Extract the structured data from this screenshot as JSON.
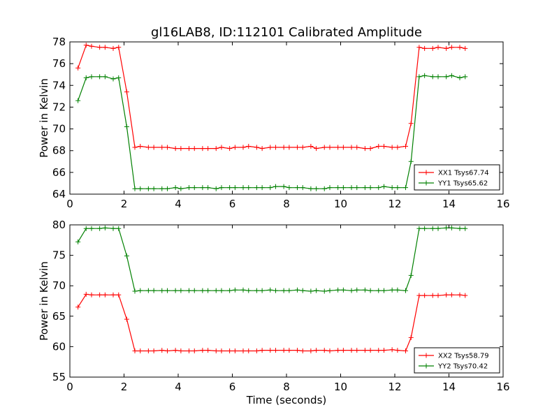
{
  "chart_data": [
    {
      "type": "line",
      "title": "gl16LAB8, ID:112101 Calibrated Amplitude",
      "xlabel": "",
      "ylabel": "Power in Kelvin",
      "xlim": [
        0,
        16
      ],
      "ylim": [
        64,
        78
      ],
      "xticks": [
        0,
        2,
        4,
        6,
        8,
        10,
        12,
        14,
        16
      ],
      "yticks": [
        64,
        66,
        68,
        70,
        72,
        74,
        76,
        78
      ],
      "legend_position": "lower-right",
      "x": [
        0.3,
        0.6,
        0.8,
        1.1,
        1.3,
        1.6,
        1.8,
        2.1,
        2.4,
        2.6,
        2.9,
        3.1,
        3.4,
        3.6,
        3.9,
        4.1,
        4.4,
        4.6,
        4.9,
        5.1,
        5.4,
        5.6,
        5.9,
        6.1,
        6.4,
        6.6,
        6.9,
        7.1,
        7.4,
        7.6,
        7.9,
        8.1,
        8.4,
        8.6,
        8.9,
        9.1,
        9.4,
        9.6,
        9.9,
        10.1,
        10.4,
        10.6,
        10.9,
        11.1,
        11.4,
        11.6,
        11.9,
        12.1,
        12.4,
        12.6,
        12.9,
        13.1,
        13.4,
        13.6,
        13.9,
        14.1,
        14.4,
        14.6
      ],
      "series": [
        {
          "name": "XX1 Tsys67.74",
          "color": "#ff0000",
          "values": [
            75.6,
            77.7,
            77.6,
            77.5,
            77.5,
            77.4,
            77.5,
            73.4,
            68.3,
            68.4,
            68.3,
            68.3,
            68.3,
            68.3,
            68.2,
            68.2,
            68.2,
            68.2,
            68.2,
            68.2,
            68.2,
            68.3,
            68.2,
            68.3,
            68.3,
            68.4,
            68.3,
            68.2,
            68.3,
            68.3,
            68.3,
            68.3,
            68.3,
            68.3,
            68.4,
            68.2,
            68.3,
            68.3,
            68.3,
            68.3,
            68.3,
            68.3,
            68.2,
            68.2,
            68.4,
            68.4,
            68.3,
            68.3,
            68.4,
            70.5,
            77.5,
            77.4,
            77.4,
            77.5,
            77.4,
            77.5,
            77.5,
            77.4
          ]
        },
        {
          "name": "YY1 Tsys65.62",
          "color": "#008000",
          "values": [
            72.6,
            74.7,
            74.8,
            74.8,
            74.8,
            74.6,
            74.7,
            70.2,
            64.5,
            64.5,
            64.5,
            64.5,
            64.5,
            64.5,
            64.6,
            64.5,
            64.6,
            64.6,
            64.6,
            64.6,
            64.5,
            64.6,
            64.6,
            64.6,
            64.6,
            64.6,
            64.6,
            64.6,
            64.6,
            64.7,
            64.7,
            64.6,
            64.6,
            64.6,
            64.5,
            64.5,
            64.5,
            64.6,
            64.6,
            64.6,
            64.6,
            64.6,
            64.6,
            64.6,
            64.6,
            64.7,
            64.6,
            64.6,
            64.6,
            67.0,
            74.8,
            74.9,
            74.8,
            74.8,
            74.8,
            74.9,
            74.7,
            74.8
          ]
        }
      ]
    },
    {
      "type": "line",
      "title": "",
      "xlabel": "Time (seconds)",
      "ylabel": "Power in Kelvin",
      "xlim": [
        0,
        16
      ],
      "ylim": [
        55,
        80
      ],
      "xticks": [
        0,
        2,
        4,
        6,
        8,
        10,
        12,
        14,
        16
      ],
      "yticks": [
        55,
        60,
        65,
        70,
        75,
        80
      ],
      "legend_position": "lower-right",
      "x": [
        0.3,
        0.6,
        0.8,
        1.1,
        1.3,
        1.6,
        1.8,
        2.1,
        2.4,
        2.6,
        2.9,
        3.1,
        3.4,
        3.6,
        3.9,
        4.1,
        4.4,
        4.6,
        4.9,
        5.1,
        5.4,
        5.6,
        5.9,
        6.1,
        6.4,
        6.6,
        6.9,
        7.1,
        7.4,
        7.6,
        7.9,
        8.1,
        8.4,
        8.6,
        8.9,
        9.1,
        9.4,
        9.6,
        9.9,
        10.1,
        10.4,
        10.6,
        10.9,
        11.1,
        11.4,
        11.6,
        11.9,
        12.1,
        12.4,
        12.6,
        12.9,
        13.1,
        13.4,
        13.6,
        13.9,
        14.1,
        14.4,
        14.6
      ],
      "series": [
        {
          "name": "XX2 Tsys58.79",
          "color": "#ff0000",
          "values": [
            66.5,
            68.6,
            68.5,
            68.5,
            68.5,
            68.5,
            68.5,
            64.5,
            59.3,
            59.3,
            59.3,
            59.3,
            59.4,
            59.3,
            59.4,
            59.3,
            59.3,
            59.3,
            59.4,
            59.4,
            59.3,
            59.3,
            59.3,
            59.3,
            59.3,
            59.3,
            59.3,
            59.4,
            59.4,
            59.4,
            59.4,
            59.4,
            59.4,
            59.3,
            59.3,
            59.4,
            59.4,
            59.3,
            59.4,
            59.4,
            59.4,
            59.4,
            59.4,
            59.4,
            59.4,
            59.4,
            59.5,
            59.4,
            59.3,
            61.5,
            68.4,
            68.4,
            68.4,
            68.4,
            68.5,
            68.5,
            68.5,
            68.4
          ]
        },
        {
          "name": "YY2 Tsys70.42",
          "color": "#008000",
          "values": [
            77.2,
            79.4,
            79.4,
            79.4,
            79.5,
            79.4,
            79.4,
            74.9,
            69.1,
            69.2,
            69.2,
            69.2,
            69.2,
            69.2,
            69.2,
            69.2,
            69.2,
            69.2,
            69.2,
            69.2,
            69.2,
            69.2,
            69.2,
            69.3,
            69.3,
            69.2,
            69.2,
            69.2,
            69.3,
            69.2,
            69.2,
            69.2,
            69.3,
            69.2,
            69.1,
            69.2,
            69.1,
            69.2,
            69.3,
            69.3,
            69.2,
            69.3,
            69.3,
            69.2,
            69.2,
            69.2,
            69.3,
            69.3,
            69.2,
            71.7,
            79.4,
            79.4,
            79.4,
            79.4,
            79.5,
            79.5,
            79.4,
            79.4
          ]
        }
      ]
    }
  ]
}
